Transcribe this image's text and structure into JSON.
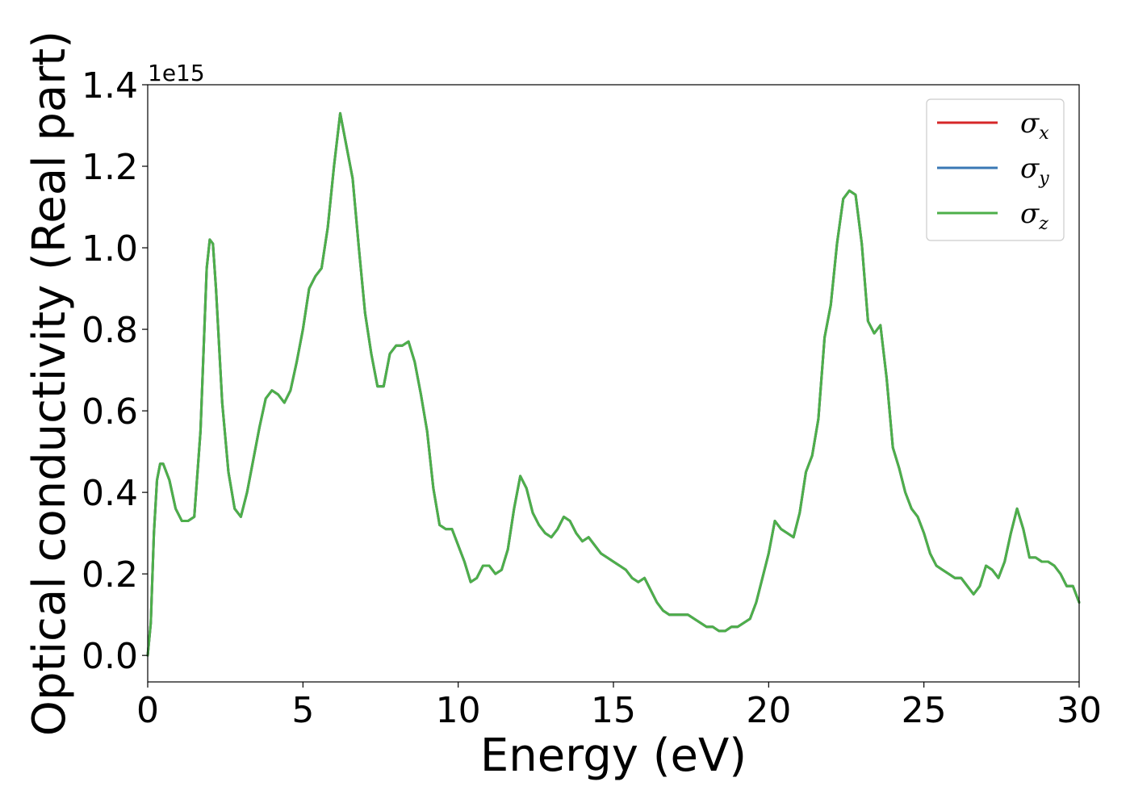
{
  "chart_data": {
    "type": "line",
    "xlabel": "Energy (eV)",
    "ylabel": "Optical conductivity (Real part)",
    "y_offset_label": "1e15",
    "xlim": [
      0,
      30
    ],
    "ylim": [
      -0.065,
      1.4
    ],
    "x_ticks": [
      0,
      5,
      10,
      15,
      20,
      25,
      30
    ],
    "x_tick_labels": [
      "0",
      "5",
      "10",
      "15",
      "20",
      "25",
      "30"
    ],
    "y_ticks": [
      0.0,
      0.2,
      0.4,
      0.6,
      0.8,
      1.0,
      1.2,
      1.4
    ],
    "y_tick_labels": [
      "0.0",
      "0.2",
      "0.4",
      "0.6",
      "0.8",
      "1.0",
      "1.2",
      "1.4"
    ],
    "grid": false,
    "legend_position": "top-right",
    "x": [
      0.0,
      0.1,
      0.2,
      0.3,
      0.4,
      0.5,
      0.7,
      0.9,
      1.1,
      1.3,
      1.5,
      1.7,
      1.9,
      2.0,
      2.1,
      2.2,
      2.4,
      2.6,
      2.8,
      3.0,
      3.2,
      3.4,
      3.6,
      3.8,
      4.0,
      4.2,
      4.4,
      4.6,
      4.8,
      5.0,
      5.2,
      5.4,
      5.6,
      5.8,
      6.0,
      6.2,
      6.4,
      6.6,
      6.8,
      7.0,
      7.2,
      7.4,
      7.6,
      7.8,
      8.0,
      8.2,
      8.4,
      8.6,
      8.8,
      9.0,
      9.2,
      9.4,
      9.6,
      9.8,
      10.0,
      10.2,
      10.4,
      10.6,
      10.8,
      11.0,
      11.2,
      11.4,
      11.6,
      11.8,
      12.0,
      12.2,
      12.4,
      12.6,
      12.8,
      13.0,
      13.2,
      13.4,
      13.6,
      13.8,
      14.0,
      14.2,
      14.4,
      14.6,
      14.8,
      15.0,
      15.2,
      15.4,
      15.6,
      15.8,
      16.0,
      16.2,
      16.4,
      16.6,
      16.8,
      17.0,
      17.2,
      17.4,
      17.6,
      17.8,
      18.0,
      18.2,
      18.4,
      18.6,
      18.8,
      19.0,
      19.2,
      19.4,
      19.6,
      19.8,
      20.0,
      20.2,
      20.4,
      20.6,
      20.8,
      21.0,
      21.2,
      21.4,
      21.6,
      21.8,
      22.0,
      22.2,
      22.4,
      22.6,
      22.8,
      23.0,
      23.2,
      23.4,
      23.6,
      23.8,
      24.0,
      24.2,
      24.4,
      24.6,
      24.8,
      25.0,
      25.2,
      25.4,
      25.6,
      25.8,
      26.0,
      26.2,
      26.4,
      26.6,
      26.8,
      27.0,
      27.2,
      27.4,
      27.6,
      27.8,
      28.0,
      28.2,
      28.4,
      28.6,
      28.8,
      29.0,
      29.2,
      29.4,
      29.6,
      29.8,
      30.0
    ],
    "series": [
      {
        "name": "σ_x",
        "label_main": "σ",
        "label_sub": "x",
        "color": "#d62728",
        "values": [
          0.0,
          0.08,
          0.3,
          0.43,
          0.47,
          0.47,
          0.43,
          0.36,
          0.33,
          0.33,
          0.34,
          0.55,
          0.95,
          1.02,
          1.01,
          0.9,
          0.62,
          0.45,
          0.36,
          0.34,
          0.4,
          0.48,
          0.56,
          0.63,
          0.65,
          0.64,
          0.62,
          0.65,
          0.72,
          0.8,
          0.9,
          0.93,
          0.95,
          1.05,
          1.2,
          1.33,
          1.25,
          1.17,
          1.0,
          0.84,
          0.74,
          0.66,
          0.66,
          0.74,
          0.76,
          0.76,
          0.77,
          0.72,
          0.64,
          0.55,
          0.41,
          0.32,
          0.31,
          0.31,
          0.27,
          0.23,
          0.18,
          0.19,
          0.22,
          0.22,
          0.2,
          0.21,
          0.26,
          0.36,
          0.44,
          0.41,
          0.35,
          0.32,
          0.3,
          0.29,
          0.31,
          0.34,
          0.33,
          0.3,
          0.28,
          0.29,
          0.27,
          0.25,
          0.24,
          0.23,
          0.22,
          0.21,
          0.19,
          0.18,
          0.19,
          0.16,
          0.13,
          0.11,
          0.1,
          0.1,
          0.1,
          0.1,
          0.09,
          0.08,
          0.07,
          0.07,
          0.06,
          0.06,
          0.07,
          0.07,
          0.08,
          0.09,
          0.13,
          0.19,
          0.25,
          0.33,
          0.31,
          0.3,
          0.29,
          0.35,
          0.45,
          0.49,
          0.58,
          0.78,
          0.86,
          1.01,
          1.12,
          1.14,
          1.13,
          1.01,
          0.82,
          0.79,
          0.81,
          0.68,
          0.51,
          0.46,
          0.4,
          0.36,
          0.34,
          0.3,
          0.25,
          0.22,
          0.21,
          0.2,
          0.19,
          0.19,
          0.17,
          0.15,
          0.17,
          0.22,
          0.21,
          0.19,
          0.23,
          0.3,
          0.36,
          0.31,
          0.24,
          0.24,
          0.23,
          0.23,
          0.22,
          0.2,
          0.17,
          0.17,
          0.13
        ]
      },
      {
        "name": "σ_y",
        "label_main": "σ",
        "label_sub": "y",
        "color": "#3a78b5",
        "values": [
          0.0,
          0.08,
          0.3,
          0.43,
          0.47,
          0.47,
          0.43,
          0.36,
          0.33,
          0.33,
          0.34,
          0.55,
          0.95,
          1.02,
          1.01,
          0.9,
          0.62,
          0.45,
          0.36,
          0.34,
          0.4,
          0.48,
          0.56,
          0.63,
          0.65,
          0.64,
          0.62,
          0.65,
          0.72,
          0.8,
          0.9,
          0.93,
          0.95,
          1.05,
          1.2,
          1.33,
          1.25,
          1.17,
          1.0,
          0.84,
          0.74,
          0.66,
          0.66,
          0.74,
          0.76,
          0.76,
          0.77,
          0.72,
          0.64,
          0.55,
          0.41,
          0.32,
          0.31,
          0.31,
          0.27,
          0.23,
          0.18,
          0.19,
          0.22,
          0.22,
          0.2,
          0.21,
          0.26,
          0.36,
          0.44,
          0.41,
          0.35,
          0.32,
          0.3,
          0.29,
          0.31,
          0.34,
          0.33,
          0.3,
          0.28,
          0.29,
          0.27,
          0.25,
          0.24,
          0.23,
          0.22,
          0.21,
          0.19,
          0.18,
          0.19,
          0.16,
          0.13,
          0.11,
          0.1,
          0.1,
          0.1,
          0.1,
          0.09,
          0.08,
          0.07,
          0.07,
          0.06,
          0.06,
          0.07,
          0.07,
          0.08,
          0.09,
          0.13,
          0.19,
          0.25,
          0.33,
          0.31,
          0.3,
          0.29,
          0.35,
          0.45,
          0.49,
          0.58,
          0.78,
          0.86,
          1.01,
          1.12,
          1.14,
          1.13,
          1.01,
          0.82,
          0.79,
          0.81,
          0.68,
          0.51,
          0.46,
          0.4,
          0.36,
          0.34,
          0.3,
          0.25,
          0.22,
          0.21,
          0.2,
          0.19,
          0.19,
          0.17,
          0.15,
          0.17,
          0.22,
          0.21,
          0.19,
          0.23,
          0.3,
          0.36,
          0.31,
          0.24,
          0.24,
          0.23,
          0.23,
          0.22,
          0.2,
          0.17,
          0.17,
          0.13
        ]
      },
      {
        "name": "σ_z",
        "label_main": "σ",
        "label_sub": "z",
        "color": "#4daf4a",
        "values": [
          0.0,
          0.08,
          0.3,
          0.43,
          0.47,
          0.47,
          0.43,
          0.36,
          0.33,
          0.33,
          0.34,
          0.55,
          0.95,
          1.02,
          1.01,
          0.9,
          0.62,
          0.45,
          0.36,
          0.34,
          0.4,
          0.48,
          0.56,
          0.63,
          0.65,
          0.64,
          0.62,
          0.65,
          0.72,
          0.8,
          0.9,
          0.93,
          0.95,
          1.05,
          1.2,
          1.33,
          1.25,
          1.17,
          1.0,
          0.84,
          0.74,
          0.66,
          0.66,
          0.74,
          0.76,
          0.76,
          0.77,
          0.72,
          0.64,
          0.55,
          0.41,
          0.32,
          0.31,
          0.31,
          0.27,
          0.23,
          0.18,
          0.19,
          0.22,
          0.22,
          0.2,
          0.21,
          0.26,
          0.36,
          0.44,
          0.41,
          0.35,
          0.32,
          0.3,
          0.29,
          0.31,
          0.34,
          0.33,
          0.3,
          0.28,
          0.29,
          0.27,
          0.25,
          0.24,
          0.23,
          0.22,
          0.21,
          0.19,
          0.18,
          0.19,
          0.16,
          0.13,
          0.11,
          0.1,
          0.1,
          0.1,
          0.1,
          0.09,
          0.08,
          0.07,
          0.07,
          0.06,
          0.06,
          0.07,
          0.07,
          0.08,
          0.09,
          0.13,
          0.19,
          0.25,
          0.33,
          0.31,
          0.3,
          0.29,
          0.35,
          0.45,
          0.49,
          0.58,
          0.78,
          0.86,
          1.01,
          1.12,
          1.14,
          1.13,
          1.01,
          0.82,
          0.79,
          0.81,
          0.68,
          0.51,
          0.46,
          0.4,
          0.36,
          0.34,
          0.3,
          0.25,
          0.22,
          0.21,
          0.2,
          0.19,
          0.19,
          0.17,
          0.15,
          0.17,
          0.22,
          0.21,
          0.19,
          0.23,
          0.3,
          0.36,
          0.31,
          0.24,
          0.24,
          0.23,
          0.23,
          0.22,
          0.2,
          0.17,
          0.17,
          0.13
        ]
      }
    ]
  }
}
